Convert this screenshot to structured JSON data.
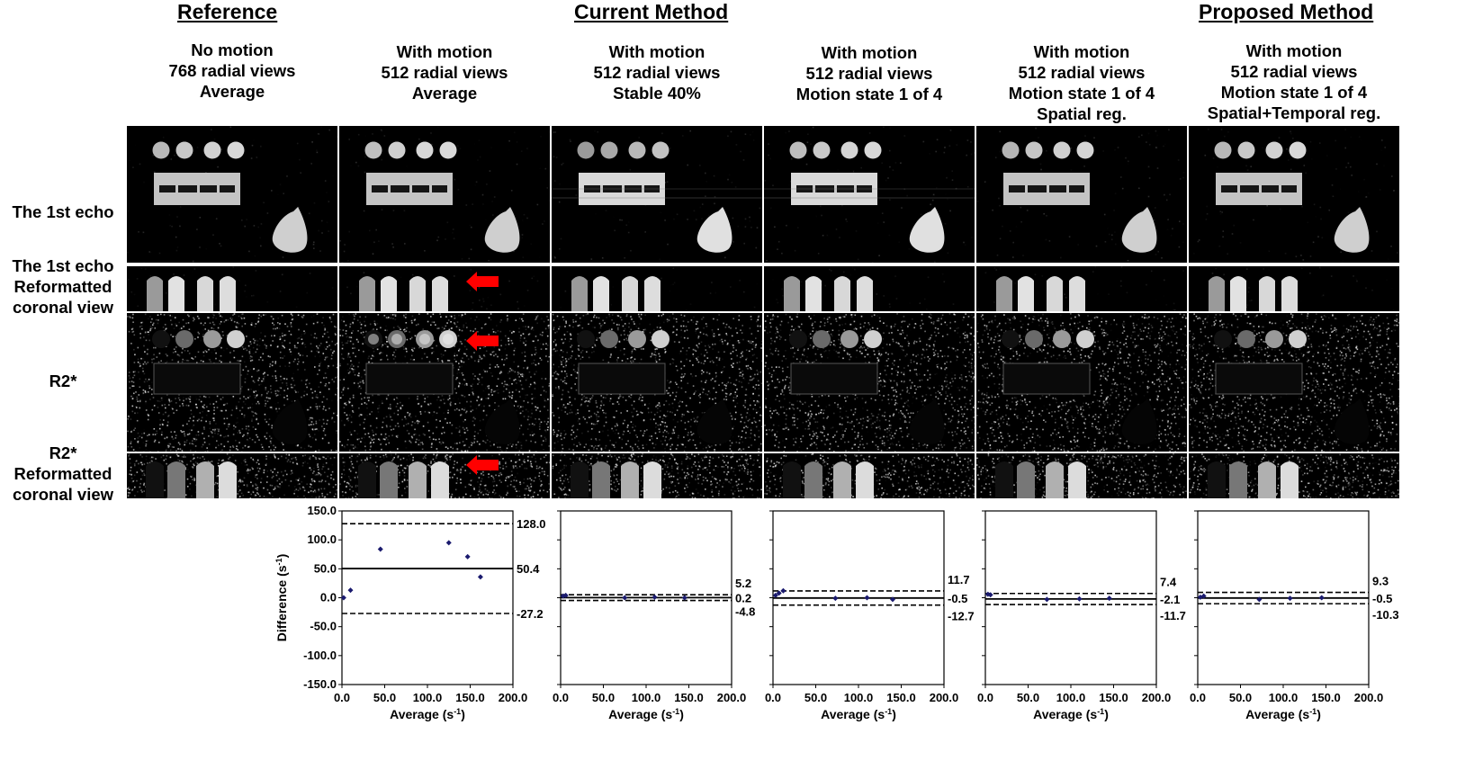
{
  "groups": [
    "Reference",
    "Current Method",
    "Proposed Method"
  ],
  "columns": [
    {
      "lines": [
        "No motion",
        "768 radial views",
        "Average"
      ]
    },
    {
      "lines": [
        "With motion",
        "512 radial views",
        "Average"
      ]
    },
    {
      "lines": [
        "With motion",
        "512 radial views",
        "Stable 40%"
      ]
    },
    {
      "lines": [
        "With motion",
        "512 radial views",
        "Motion state 1 of 4"
      ]
    },
    {
      "lines": [
        "With motion",
        "512 radial views",
        "Motion state 1 of 4",
        "Spatial reg."
      ]
    },
    {
      "lines": [
        "With motion",
        "512 radial views",
        "Motion state 1 of 4",
        "Spatial+Temporal reg."
      ]
    }
  ],
  "rows": [
    {
      "lines": [
        "The 1st echo"
      ]
    },
    {
      "lines": [
        "The 1st echo",
        "Reformatted",
        "coronal view"
      ]
    },
    {
      "lines": [
        "R2*"
      ]
    },
    {
      "lines": [
        "R2*",
        "Reformatted",
        "coronal view"
      ]
    }
  ],
  "arrows": {
    "color": "#ff0000",
    "rows": [
      1,
      2,
      3
    ],
    "column": 1
  },
  "chart_data": [
    {
      "type": "scatter",
      "column": 1,
      "points": [
        [
          2,
          0
        ],
        [
          10,
          13
        ],
        [
          45,
          84
        ],
        [
          125,
          95
        ],
        [
          147,
          71
        ],
        [
          162,
          36
        ]
      ],
      "mean": 50.4,
      "upper": 128.0,
      "lower": -27.2,
      "labels": {
        "upper": "128.0",
        "mean": "50.4",
        "lower": "-27.2"
      },
      "xlim": [
        0,
        200
      ],
      "ylim": [
        -150,
        150
      ],
      "xticks": [
        "0.0",
        "50.0",
        "100.0",
        "150.0",
        "200.0"
      ],
      "yticks": [
        "150.0",
        "100.0",
        "50.0",
        "0.0",
        "-50.0",
        "-100.0",
        "-150.0"
      ],
      "xlabel": "Average (s",
      "ylabel": "Difference (s"
    },
    {
      "type": "scatter",
      "column": 2,
      "points": [
        [
          3,
          3
        ],
        [
          6,
          4
        ],
        [
          75,
          0
        ],
        [
          110,
          1
        ],
        [
          145,
          0
        ]
      ],
      "mean": 0.2,
      "upper": 5.2,
      "lower": -4.8,
      "labels": {
        "upper": "5.2",
        "mean": "0.2",
        "lower": "-4.8"
      },
      "xlim": [
        0,
        200
      ],
      "ylim": [
        -150,
        150
      ],
      "xticks": [
        "0.0",
        "50.0",
        "100.0",
        "150.0",
        "200.0"
      ],
      "xlabel": "Average (s"
    },
    {
      "type": "scatter",
      "column": 3,
      "points": [
        [
          3,
          4
        ],
        [
          7,
          8
        ],
        [
          12,
          12
        ],
        [
          73,
          -1
        ],
        [
          110,
          0
        ],
        [
          140,
          -3
        ]
      ],
      "mean": -0.5,
      "upper": 11.7,
      "lower": -12.7,
      "labels": {
        "upper": "11.7",
        "mean": "-0.5",
        "lower": "-12.7"
      },
      "xlim": [
        0,
        200
      ],
      "ylim": [
        -150,
        150
      ],
      "xticks": [
        "0.0",
        "50.0",
        "100.0",
        "150.0",
        "200.0"
      ],
      "xlabel": "Average (s"
    },
    {
      "type": "scatter",
      "column": 4,
      "points": [
        [
          3,
          6
        ],
        [
          6,
          5
        ],
        [
          72,
          -3
        ],
        [
          110,
          -2
        ],
        [
          145,
          -1
        ]
      ],
      "mean": -2.1,
      "upper": 7.4,
      "lower": -11.7,
      "labels": {
        "upper": "7.4",
        "mean": "-2.1",
        "lower": "-11.7"
      },
      "xlim": [
        0,
        200
      ],
      "ylim": [
        -150,
        150
      ],
      "xticks": [
        "0.0",
        "50.0",
        "100.0",
        "150.0",
        "200.0"
      ],
      "xlabel": "Average (s"
    },
    {
      "type": "scatter",
      "column": 5,
      "points": [
        [
          3,
          1
        ],
        [
          7,
          3
        ],
        [
          72,
          -3
        ],
        [
          108,
          -1
        ],
        [
          145,
          0
        ]
      ],
      "mean": -0.5,
      "upper": 9.3,
      "lower": -10.3,
      "labels": {
        "upper": "9.3",
        "mean": "-0.5",
        "lower": "-10.3"
      },
      "xlim": [
        0,
        200
      ],
      "ylim": [
        -150,
        150
      ],
      "xticks": [
        "0.0",
        "50.0",
        "100.0",
        "150.0",
        "200.0"
      ],
      "xlabel": "Average (s"
    }
  ],
  "unit_sup": "-1",
  "point_color": "#1a1a6e"
}
